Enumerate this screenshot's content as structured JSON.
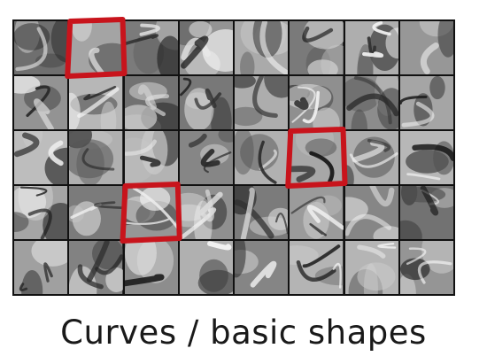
{
  "caption": "Curves / basic shapes",
  "grid": {
    "rows": 5,
    "cols": 8
  },
  "highlighted_tiles": [
    {
      "row": 0,
      "col": 1
    },
    {
      "row": 2,
      "col": 5
    },
    {
      "row": 3,
      "col": 2
    }
  ],
  "colors": {
    "highlight": "#c8141c",
    "grid_line": "#111111",
    "caption_text": "#1a1a1a"
  }
}
